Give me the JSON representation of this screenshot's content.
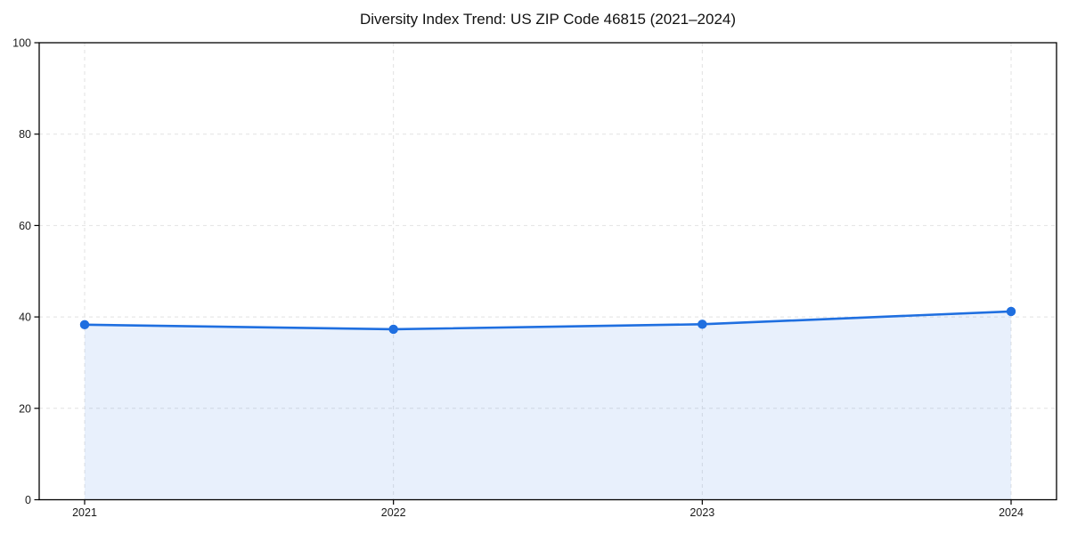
{
  "title": "Diversity Index Trend: US ZIP Code 46815 (2021–2024)",
  "chart_data": {
    "type": "area",
    "title": "Diversity Index Trend: US ZIP Code 46815 (2021–2024)",
    "categories": [
      "2021",
      "2022",
      "2023",
      "2024"
    ],
    "series": [
      {
        "name": "Diversity Index",
        "values": [
          38.3,
          37.3,
          38.4,
          41.2
        ]
      }
    ],
    "xlabel": "",
    "ylabel": "",
    "ylim": [
      0,
      100
    ],
    "yticks": [
      0,
      20,
      40,
      60,
      80,
      100
    ],
    "grid": "dashed, both axes",
    "legend": "none",
    "marker": "circle",
    "colors": {
      "line": "#1f6fe0",
      "marker": "#1f6fe0",
      "fill_rgba": "rgba(31,111,224,0.10)",
      "grid": "#e2e2e2",
      "axis": "#000000",
      "tick_text": "#1a1a1a",
      "background": "#ffffff"
    }
  }
}
